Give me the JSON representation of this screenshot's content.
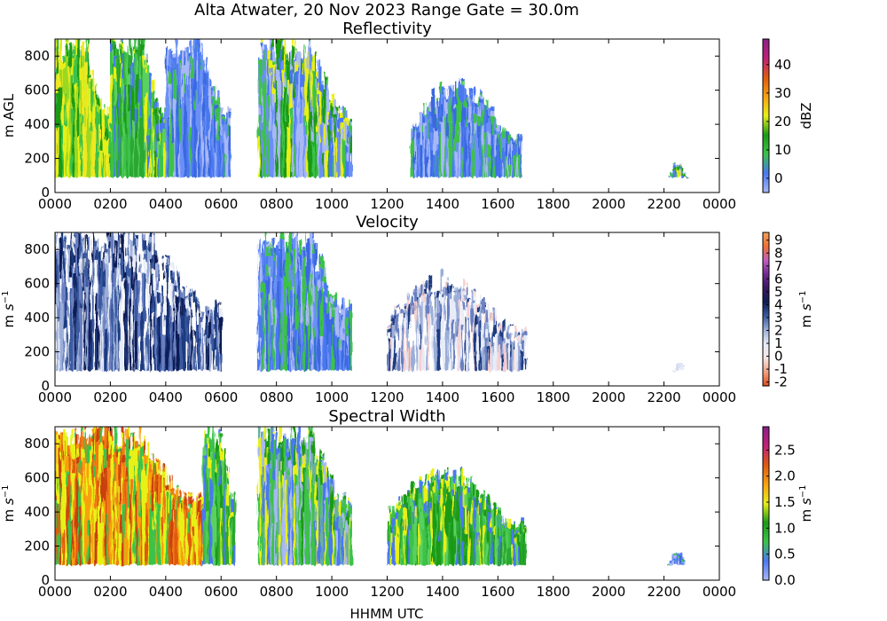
{
  "suptitle": "Alta Atwater, 20 Nov 2023 Range Gate = 30.0m",
  "xlabel": "HHMM UTC",
  "chart_data": [
    {
      "type": "heatmap",
      "title": "Reflectivity",
      "ylabel": "m AGL",
      "colorbar_label": "dBZ",
      "colorbar_ticks": [
        "0",
        "10",
        "20",
        "30",
        "40"
      ],
      "colorbar_range": [
        -5,
        49
      ],
      "colormap": [
        "#a8b8f5",
        "#4a78f0",
        "#3cc24a",
        "#1a9a18",
        "#e8f018",
        "#f8a010",
        "#e05a10",
        "#c0207a",
        "#8a2088"
      ],
      "xticks": [
        "0000",
        "0200",
        "0400",
        "0600",
        "0800",
        "1000",
        "1200",
        "1400",
        "1600",
        "1800",
        "2000",
        "2200",
        "0000"
      ],
      "yticks": [
        "0",
        "200",
        "400",
        "600",
        "800"
      ],
      "ylim": [
        0,
        900
      ],
      "echo_periods": [
        {
          "start": "0000",
          "end": "0200",
          "top_m": 900,
          "typical": "yellow-green"
        },
        {
          "start": "0200",
          "end": "0400",
          "top_m": 900,
          "typical": "green"
        },
        {
          "start": "0400",
          "end": "0620",
          "top_m": 900,
          "typical": "blue"
        },
        {
          "start": "0720",
          "end": "1040",
          "top_m": 900,
          "typical": "blue-green"
        },
        {
          "start": "1250",
          "end": "1650",
          "top_m": 650,
          "typical": "blue"
        },
        {
          "start": "2210",
          "end": "2250",
          "top_m": 180,
          "typical": "blue-green"
        }
      ]
    },
    {
      "type": "heatmap",
      "title": "Velocity",
      "ylabel": "m s",
      "colorbar_label": "m s",
      "colorbar_ticks": [
        "-2",
        "-1",
        "0",
        "1",
        "2",
        "3",
        "4",
        "5",
        "6",
        "7",
        "8",
        "9"
      ],
      "colorbar_range": [
        -2.3,
        9.6
      ],
      "colormap": [
        "#e04a20",
        "#f0a080",
        "#f5e6e6",
        "#e8ecf8",
        "#9aaed8",
        "#3a5aa0",
        "#0d1e55",
        "#3a1860",
        "#702890",
        "#c060c0",
        "#f07030",
        "#f0a060"
      ],
      "xticks": [
        "0000",
        "0200",
        "0400",
        "0600",
        "0800",
        "1000",
        "1200",
        "1400",
        "1600",
        "1800",
        "2000",
        "2200",
        "0000"
      ],
      "yticks": [
        "0",
        "200",
        "400",
        "600",
        "800"
      ],
      "ylim": [
        0,
        900
      ],
      "echo_periods": [
        {
          "start": "0000",
          "end": "0600",
          "top_m": 900,
          "typical": "dark-blue"
        },
        {
          "start": "0720",
          "end": "1040",
          "top_m": 900,
          "typical": "blue"
        },
        {
          "start": "1200",
          "end": "1700",
          "top_m": 650,
          "typical": "light-blue"
        },
        {
          "start": "2220",
          "end": "2250",
          "top_m": 150,
          "typical": "very-light-blue"
        }
      ]
    },
    {
      "type": "heatmap",
      "title": "Spectral Width",
      "ylabel": "m s",
      "colorbar_label": "m s",
      "colorbar_ticks": [
        "0.0",
        "0.5",
        "1.0",
        "1.5",
        "2.0",
        "2.5"
      ],
      "colorbar_range": [
        0,
        2.95
      ],
      "colormap": [
        "#a8b8f5",
        "#4a78f0",
        "#3cc24a",
        "#1a9a18",
        "#e8f018",
        "#f8a010",
        "#e05a10",
        "#c0207a",
        "#8a2088"
      ],
      "xticks": [
        "0000",
        "0200",
        "0400",
        "0600",
        "0800",
        "1000",
        "1200",
        "1400",
        "1600",
        "1800",
        "2000",
        "2200",
        "0000"
      ],
      "yticks": [
        "0",
        "200",
        "400",
        "600",
        "800"
      ],
      "ylim": [
        0,
        900
      ],
      "echo_periods": [
        {
          "start": "0000",
          "end": "0520",
          "top_m": 900,
          "typical": "orange-red"
        },
        {
          "start": "0520",
          "end": "0630",
          "top_m": 900,
          "typical": "green"
        },
        {
          "start": "0720",
          "end": "1040",
          "top_m": 900,
          "typical": "green-blue"
        },
        {
          "start": "1200",
          "end": "1700",
          "top_m": 650,
          "typical": "green"
        },
        {
          "start": "2210",
          "end": "2250",
          "top_m": 180,
          "typical": "blue"
        }
      ]
    }
  ]
}
